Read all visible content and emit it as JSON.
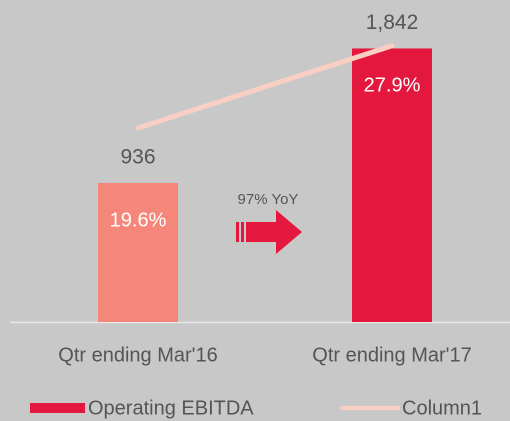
{
  "chart_data": {
    "type": "bar",
    "categories": [
      "Qtr ending Mar'16",
      "Qtr ending Mar'17"
    ],
    "series": [
      {
        "name": "Operating EBITDA",
        "type": "bar",
        "color": "#e4173e",
        "colors": [
          "#f4877a",
          "#e4173e"
        ],
        "values": [
          936,
          1842
        ],
        "value_labels": [
          "936",
          "1,842"
        ]
      },
      {
        "name": "Column1",
        "type": "line",
        "axis": "y2",
        "color": "#f9cfc4",
        "values": [
          19.6,
          27.9
        ],
        "value_labels": [
          "19.6%",
          "27.9%"
        ]
      }
    ],
    "ylim": [
      0,
      2000
    ],
    "y2lim": [
      0,
      30
    ],
    "annotations": [
      "97% YoY"
    ],
    "legend": "bottom"
  }
}
